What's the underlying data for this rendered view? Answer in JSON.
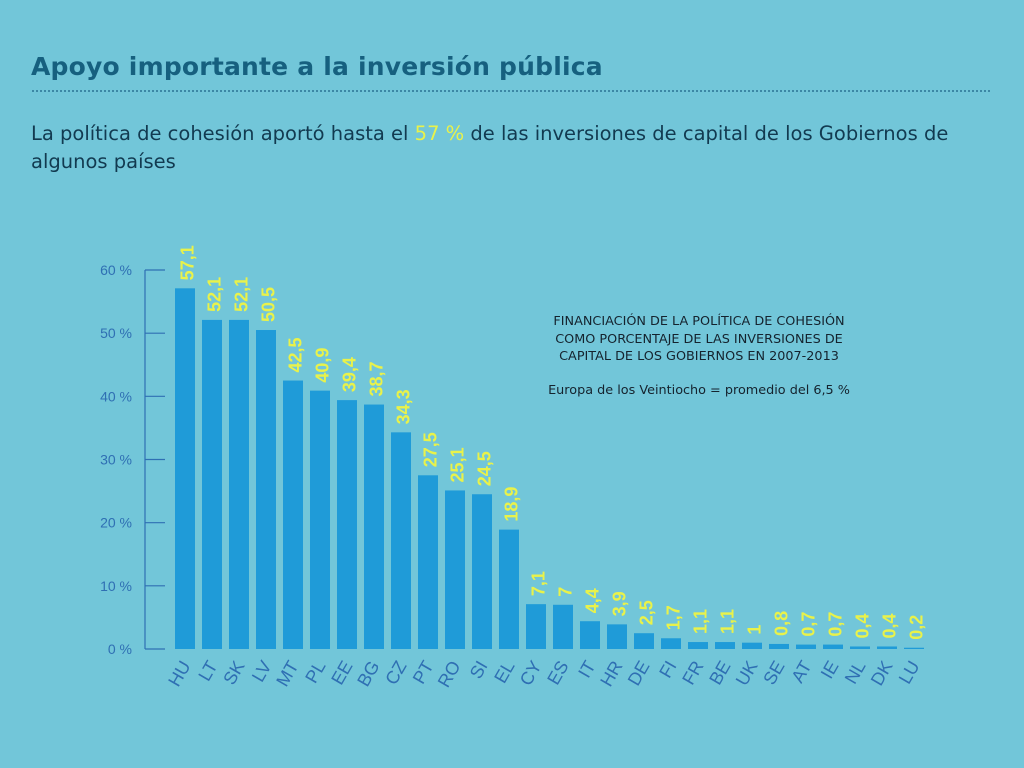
{
  "title": "Apoyo importante a la inversión pública",
  "subtitle": {
    "before": "La política de cohesión aportó hasta el ",
    "highlight": "57 %",
    "after": " de las inversiones de capital de los Gobiernos de algunos países"
  },
  "note": {
    "heading": "FINANCIACIÓN DE LA POLÍTICA DE COHESIÓN COMO PORCENTAJE DE LAS INVERSIONES DE CAPITAL DE LOS GOBIERNOS EN 2007-2013",
    "text": "Europa de los Veintiocho = promedio del 6,5 %"
  },
  "colors": {
    "background": "#72c6d9",
    "bar": "#1f9bd8",
    "value_label": "#e9f24a",
    "axis": "#2f6fb3",
    "title": "#16607f"
  },
  "chart_data": {
    "type": "bar",
    "categories": [
      "HU",
      "LT",
      "SK",
      "LV",
      "MT",
      "PL",
      "EE",
      "BG",
      "CZ",
      "PT",
      "RO",
      "SI",
      "EL",
      "CY",
      "ES",
      "IT",
      "HR",
      "DE",
      "FI",
      "FR",
      "BE",
      "UK",
      "SE",
      "AT",
      "IE",
      "NL",
      "DK",
      "LU"
    ],
    "values": [
      57.1,
      52.1,
      52.1,
      50.5,
      42.5,
      40.9,
      39.4,
      38.7,
      34.3,
      27.5,
      25.1,
      24.5,
      18.9,
      7.1,
      7,
      4.4,
      3.9,
      2.5,
      1.7,
      1.1,
      1.1,
      1,
      0.8,
      0.7,
      0.7,
      0.4,
      0.4,
      0.2
    ],
    "value_labels": [
      "57,1",
      "52,1",
      "52,1",
      "50,5",
      "42,5",
      "40,9",
      "39,4",
      "38,7",
      "34,3",
      "27,5",
      "25,1",
      "24,5",
      "18,9",
      "7,1",
      "7",
      "4,4",
      "3,9",
      "2,5",
      "1,7",
      "1,1",
      "1,1",
      "1",
      "0,8",
      "0,7",
      "0,7",
      "0,4",
      "0,4",
      "0,2"
    ],
    "ylim": [
      0,
      60
    ],
    "yticks": [
      0,
      10,
      20,
      30,
      40,
      50,
      60
    ],
    "ytick_labels": [
      "0 %",
      "10 %",
      "20 %",
      "30 %",
      "40 %",
      "50 %",
      "60 %"
    ],
    "grid": false,
    "legend": "none"
  }
}
